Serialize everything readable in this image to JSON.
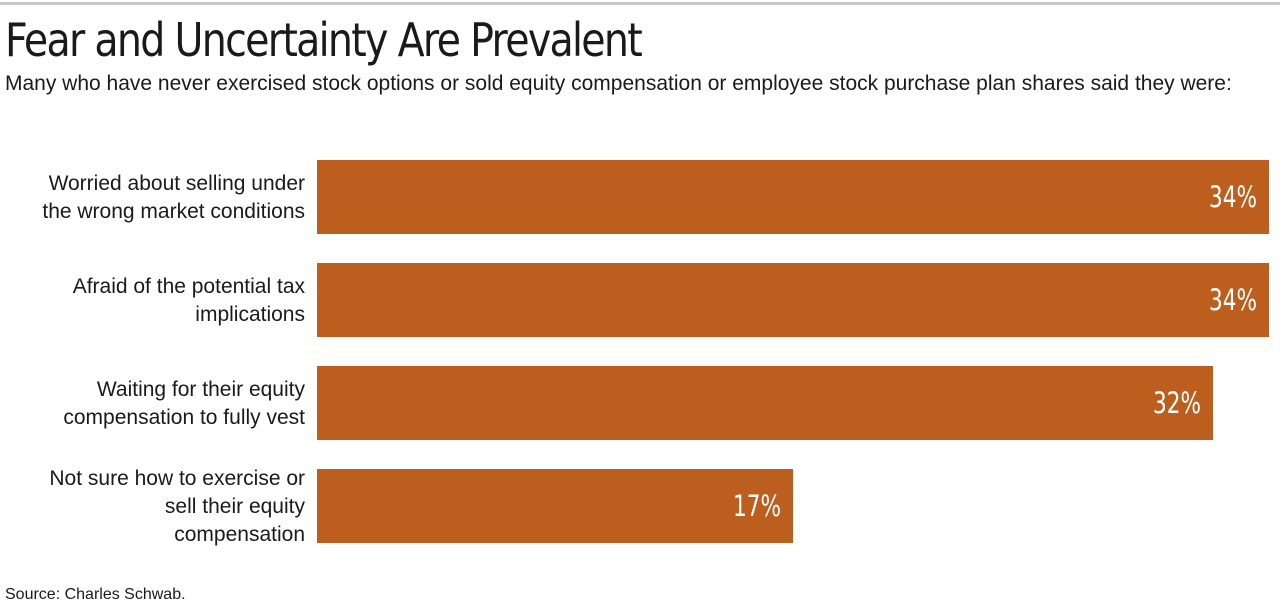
{
  "chart_data": {
    "type": "bar",
    "orientation": "horizontal",
    "title": "Fear and Uncertainty Are Prevalent",
    "subtitle": "Many who have never exercised stock options or sold equity compensation or employee stock purchase plan shares said they were:",
    "categories": [
      [
        "Worried about selling under",
        "the wrong market conditions"
      ],
      [
        "Afraid of the potential tax",
        "implications"
      ],
      [
        "Waiting for their equity",
        "compensation to fully vest"
      ],
      [
        "Not sure how to exercise or",
        "sell their equity",
        "compensation"
      ]
    ],
    "values": [
      34,
      34,
      32,
      17
    ],
    "value_labels": [
      "34%",
      "34%",
      "32%",
      "17%"
    ],
    "xlim": [
      0,
      34
    ],
    "bar_color": "#bc5f1e",
    "label_color": "#ffffff",
    "grid": false,
    "legend": "none"
  },
  "footer": {
    "source": "Source: Charles Schwab."
  }
}
